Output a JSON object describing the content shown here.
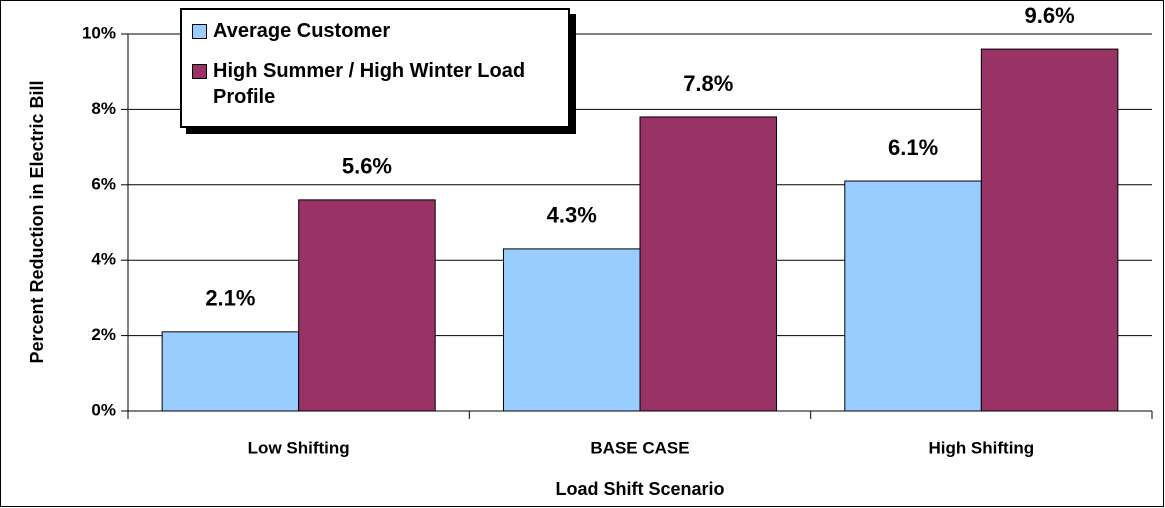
{
  "chart_data": {
    "type": "bar",
    "x_label": "Load Shift Scenario",
    "y_label": "Percent Reduction in Electric Bill",
    "categories": [
      "Low Shifting",
      "BASE CASE",
      "High Shifting"
    ],
    "series": [
      {
        "name": "Average Customer",
        "color": "#99ccff",
        "values": [
          2.1,
          4.3,
          6.1
        ],
        "value_labels": [
          "2.1%",
          "4.3%",
          "6.1%"
        ]
      },
      {
        "name": "High Summer / High Winter Load Profile",
        "color": "#993366",
        "values": [
          5.6,
          7.8,
          9.6
        ],
        "value_labels": [
          "5.6%",
          "7.8%",
          "9.6%"
        ]
      }
    ],
    "ylim": [
      0,
      10
    ],
    "yticks": [
      {
        "value": 0,
        "label": "0%"
      },
      {
        "value": 2,
        "label": "2%"
      },
      {
        "value": 4,
        "label": "4%"
      },
      {
        "value": 6,
        "label": "6%"
      },
      {
        "value": 8,
        "label": "8%"
      },
      {
        "value": 10,
        "label": "10%"
      }
    ],
    "grid": true
  }
}
